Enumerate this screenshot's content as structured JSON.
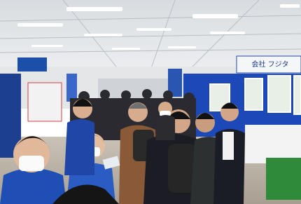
{
  "scene": {
    "booth_sign": "会社 フジタ"
  }
}
